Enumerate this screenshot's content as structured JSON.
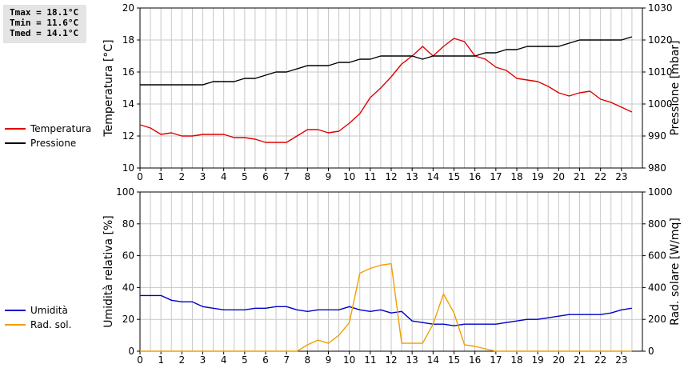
{
  "stats": {
    "tmax": "Tmax = 18.1°C",
    "tmin": "Tmin = 11.6°C",
    "tmed": "Tmed = 14.1°C"
  },
  "colors": {
    "temperature": "#e00000",
    "pressure": "#000000",
    "humidity": "#0000c8",
    "solar": "#f0a000",
    "grid": "#c8c8c8"
  },
  "chart_data": [
    {
      "type": "line",
      "xlim": [
        0,
        24
      ],
      "x_ticks": [
        "0",
        "1",
        "2",
        "3",
        "4",
        "5",
        "6",
        "7",
        "8",
        "9",
        "10",
        "11",
        "12",
        "13",
        "14",
        "15",
        "16",
        "17",
        "18",
        "19",
        "20",
        "21",
        "22",
        "23"
      ],
      "grid": true,
      "ylabel": "Temperatura [°C]",
      "ylim": [
        10,
        20
      ],
      "y_ticks": [
        "10",
        "12",
        "14",
        "16",
        "18",
        "20"
      ],
      "ylabel_right": "Pressione [mbar]",
      "ylim_right": [
        980,
        1030
      ],
      "y_ticks_right": [
        "980",
        "990",
        "1000",
        "1010",
        "1020",
        "1030"
      ],
      "legend": [
        "Temperatura",
        "Pressione"
      ],
      "series": [
        {
          "name": "Temperatura",
          "axis": "left",
          "x": [
            0,
            0.5,
            1,
            1.5,
            2,
            2.5,
            3,
            3.5,
            4,
            4.5,
            5,
            5.5,
            6,
            6.5,
            7,
            7.5,
            8,
            8.5,
            9,
            9.5,
            10,
            10.5,
            11,
            11.5,
            12,
            12.5,
            13,
            13.5,
            14,
            14.5,
            15,
            15.5,
            16,
            16.5,
            17,
            17.5,
            18,
            18.5,
            19,
            19.5,
            20,
            20.5,
            21,
            21.5,
            22,
            22.5,
            23,
            23.5
          ],
          "y": [
            12.7,
            12.5,
            12.1,
            12.2,
            12.0,
            12.0,
            12.1,
            12.1,
            12.1,
            11.9,
            11.9,
            11.8,
            11.6,
            11.6,
            11.6,
            12.0,
            12.4,
            12.4,
            12.2,
            12.3,
            12.8,
            13.4,
            14.4,
            15.0,
            15.7,
            16.5,
            17.0,
            17.6,
            17.0,
            17.6,
            18.1,
            17.9,
            17.0,
            16.8,
            16.3,
            16.1,
            15.6,
            15.5,
            15.4,
            15.1,
            14.7,
            14.5,
            14.7,
            14.8,
            14.3,
            14.1,
            13.8,
            13.5
          ]
        },
        {
          "name": "Pressione",
          "axis": "right",
          "x": [
            0,
            0.5,
            1,
            1.5,
            2,
            2.5,
            3,
            3.5,
            4,
            4.5,
            5,
            5.5,
            6,
            6.5,
            7,
            7.5,
            8,
            8.5,
            9,
            9.5,
            10,
            10.5,
            11,
            11.5,
            12,
            12.5,
            13,
            13.5,
            14,
            14.5,
            15,
            15.5,
            16,
            16.5,
            17,
            17.5,
            18,
            18.5,
            19,
            19.5,
            20,
            20.5,
            21,
            21.5,
            22,
            22.5,
            23,
            23.5
          ],
          "y": [
            1006,
            1006,
            1006,
            1006,
            1006,
            1006,
            1006,
            1007,
            1007,
            1007,
            1008,
            1008,
            1009,
            1010,
            1010,
            1011,
            1012,
            1012,
            1012,
            1013,
            1013,
            1014,
            1014,
            1015,
            1015,
            1015,
            1015,
            1014,
            1015,
            1015,
            1015,
            1015,
            1015,
            1016,
            1016,
            1017,
            1017,
            1018,
            1018,
            1018,
            1018,
            1019,
            1020,
            1020,
            1020,
            1020,
            1020,
            1021
          ]
        }
      ]
    },
    {
      "type": "line",
      "xlim": [
        0,
        24
      ],
      "x_ticks": [
        "0",
        "1",
        "2",
        "3",
        "4",
        "5",
        "6",
        "7",
        "8",
        "9",
        "10",
        "11",
        "12",
        "13",
        "14",
        "15",
        "16",
        "17",
        "18",
        "19",
        "20",
        "21",
        "22",
        "23"
      ],
      "grid": true,
      "ylabel": "Umidità relativa [%]",
      "ylim": [
        0,
        100
      ],
      "y_ticks": [
        "0",
        "20",
        "40",
        "60",
        "80",
        "100"
      ],
      "ylabel_right": "Rad. solare [W/mq]",
      "ylim_right": [
        0,
        1000
      ],
      "y_ticks_right": [
        "0",
        "200",
        "400",
        "600",
        "800",
        "1000"
      ],
      "legend": [
        "Umidità",
        "Rad. sol."
      ],
      "series": [
        {
          "name": "Umidità",
          "axis": "left",
          "x": [
            0,
            0.5,
            1,
            1.5,
            2,
            2.5,
            3,
            3.5,
            4,
            4.5,
            5,
            5.5,
            6,
            6.5,
            7,
            7.5,
            8,
            8.5,
            9,
            9.5,
            10,
            10.5,
            11,
            11.5,
            12,
            12.5,
            13,
            13.5,
            14,
            14.5,
            15,
            15.5,
            16,
            16.5,
            17,
            17.5,
            18,
            18.5,
            19,
            19.5,
            20,
            20.5,
            21,
            21.5,
            22,
            22.5,
            23,
            23.5
          ],
          "y": [
            35,
            35,
            35,
            32,
            31,
            31,
            28,
            27,
            26,
            26,
            26,
            27,
            27,
            28,
            28,
            26,
            25,
            26,
            26,
            26,
            28,
            26,
            25,
            26,
            24,
            25,
            19,
            18,
            17,
            17,
            16,
            17,
            17,
            17,
            17,
            18,
            19,
            20,
            20,
            21,
            22,
            23,
            23,
            23,
            23,
            24,
            26,
            27
          ]
        },
        {
          "name": "Rad. sol.",
          "axis": "right",
          "x": [
            0,
            0.5,
            1,
            1.5,
            2,
            2.5,
            3,
            3.5,
            4,
            4.5,
            5,
            5.5,
            6,
            6.5,
            7,
            7.5,
            8,
            8.5,
            9,
            9.5,
            10,
            10.5,
            11,
            11.5,
            12,
            12.5,
            13,
            13.5,
            14,
            14.5,
            15,
            15.5,
            16,
            16.5,
            17,
            17.5,
            18,
            18.5,
            19,
            19.5,
            20,
            20.5,
            21,
            21.5,
            22,
            22.5,
            23,
            23.5
          ],
          "y": [
            0,
            0,
            0,
            0,
            0,
            0,
            0,
            0,
            0,
            0,
            0,
            0,
            0,
            0,
            0,
            0,
            40,
            70,
            50,
            100,
            180,
            490,
            520,
            540,
            550,
            50,
            50,
            50,
            170,
            360,
            240,
            40,
            30,
            15,
            0,
            0,
            0,
            0,
            0,
            0,
            0,
            0,
            0,
            0,
            0,
            0,
            0,
            0
          ]
        }
      ]
    }
  ]
}
